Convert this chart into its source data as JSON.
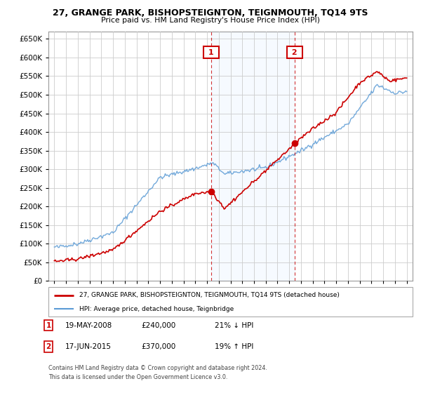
{
  "title": "27, GRANGE PARK, BISHOPSTEIGNTON, TEIGNMOUTH, TQ14 9TS",
  "subtitle": "Price paid vs. HM Land Registry's House Price Index (HPI)",
  "legend_line1": "27, GRANGE PARK, BISHOPSTEIGNTON, TEIGNMOUTH, TQ14 9TS (detached house)",
  "legend_line2": "HPI: Average price, detached house, Teignbridge",
  "annotation1_label": "1",
  "annotation1_date": "19-MAY-2008",
  "annotation1_price": "£240,000",
  "annotation1_hpi": "21% ↓ HPI",
  "annotation1_year": 2008.37,
  "annotation1_value": 240000,
  "annotation2_label": "2",
  "annotation2_date": "17-JUN-2015",
  "annotation2_price": "£370,000",
  "annotation2_hpi": "19% ↑ HPI",
  "annotation2_year": 2015.46,
  "annotation2_value": 370000,
  "footer_line1": "Contains HM Land Registry data © Crown copyright and database right 2024.",
  "footer_line2": "This data is licensed under the Open Government Licence v3.0.",
  "hpi_color": "#5b9bd5",
  "price_color": "#cc0000",
  "annotation_color": "#cc0000",
  "background_color": "#ffffff",
  "grid_color": "#cccccc",
  "shade_color": "#ddeeff",
  "ylim_min": 0,
  "ylim_max": 670000,
  "yticks": [
    0,
    50000,
    100000,
    150000,
    200000,
    250000,
    300000,
    350000,
    400000,
    450000,
    500000,
    550000,
    600000,
    650000
  ],
  "xlim_min": 1994.5,
  "xlim_max": 2025.5
}
